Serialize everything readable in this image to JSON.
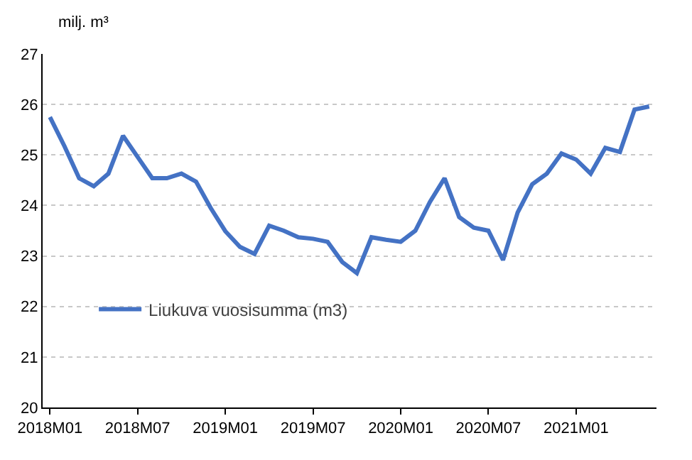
{
  "chart_data": {
    "type": "line",
    "ylabel": "milj. m³",
    "categories": [
      "2018M01",
      null,
      null,
      null,
      null,
      null,
      "2018M07",
      null,
      null,
      null,
      null,
      null,
      "2019M01",
      null,
      null,
      null,
      null,
      null,
      "2019M07",
      null,
      null,
      null,
      null,
      null,
      "2020M01",
      null,
      null,
      null,
      null,
      null,
      "2020M07",
      null,
      null,
      null,
      null,
      null,
      "2021M01",
      null,
      null,
      null,
      null,
      null
    ],
    "series": [
      {
        "name": "Liukuva vuosisumma (m3)",
        "color": "#4472c4",
        "values": [
          25.75,
          25.17,
          24.54,
          24.38,
          24.63,
          25.38,
          24.96,
          24.54,
          24.54,
          24.63,
          24.47,
          23.95,
          23.49,
          23.18,
          23.04,
          23.6,
          23.5,
          23.37,
          23.34,
          23.28,
          22.88,
          22.66,
          23.37,
          23.32,
          23.28,
          23.5,
          24.07,
          24.54,
          23.77,
          23.56,
          23.5,
          22.92,
          23.86,
          24.42,
          24.63,
          25.03,
          24.91,
          24.63,
          25.14,
          25.06,
          25.9,
          25.96
        ]
      }
    ],
    "ylim": [
      20,
      27
    ],
    "yticks": [
      20,
      21,
      22,
      23,
      24,
      25,
      26,
      27
    ],
    "grid": "y",
    "legend": "bottom left",
    "marker": "none",
    "line_style": "solid"
  }
}
